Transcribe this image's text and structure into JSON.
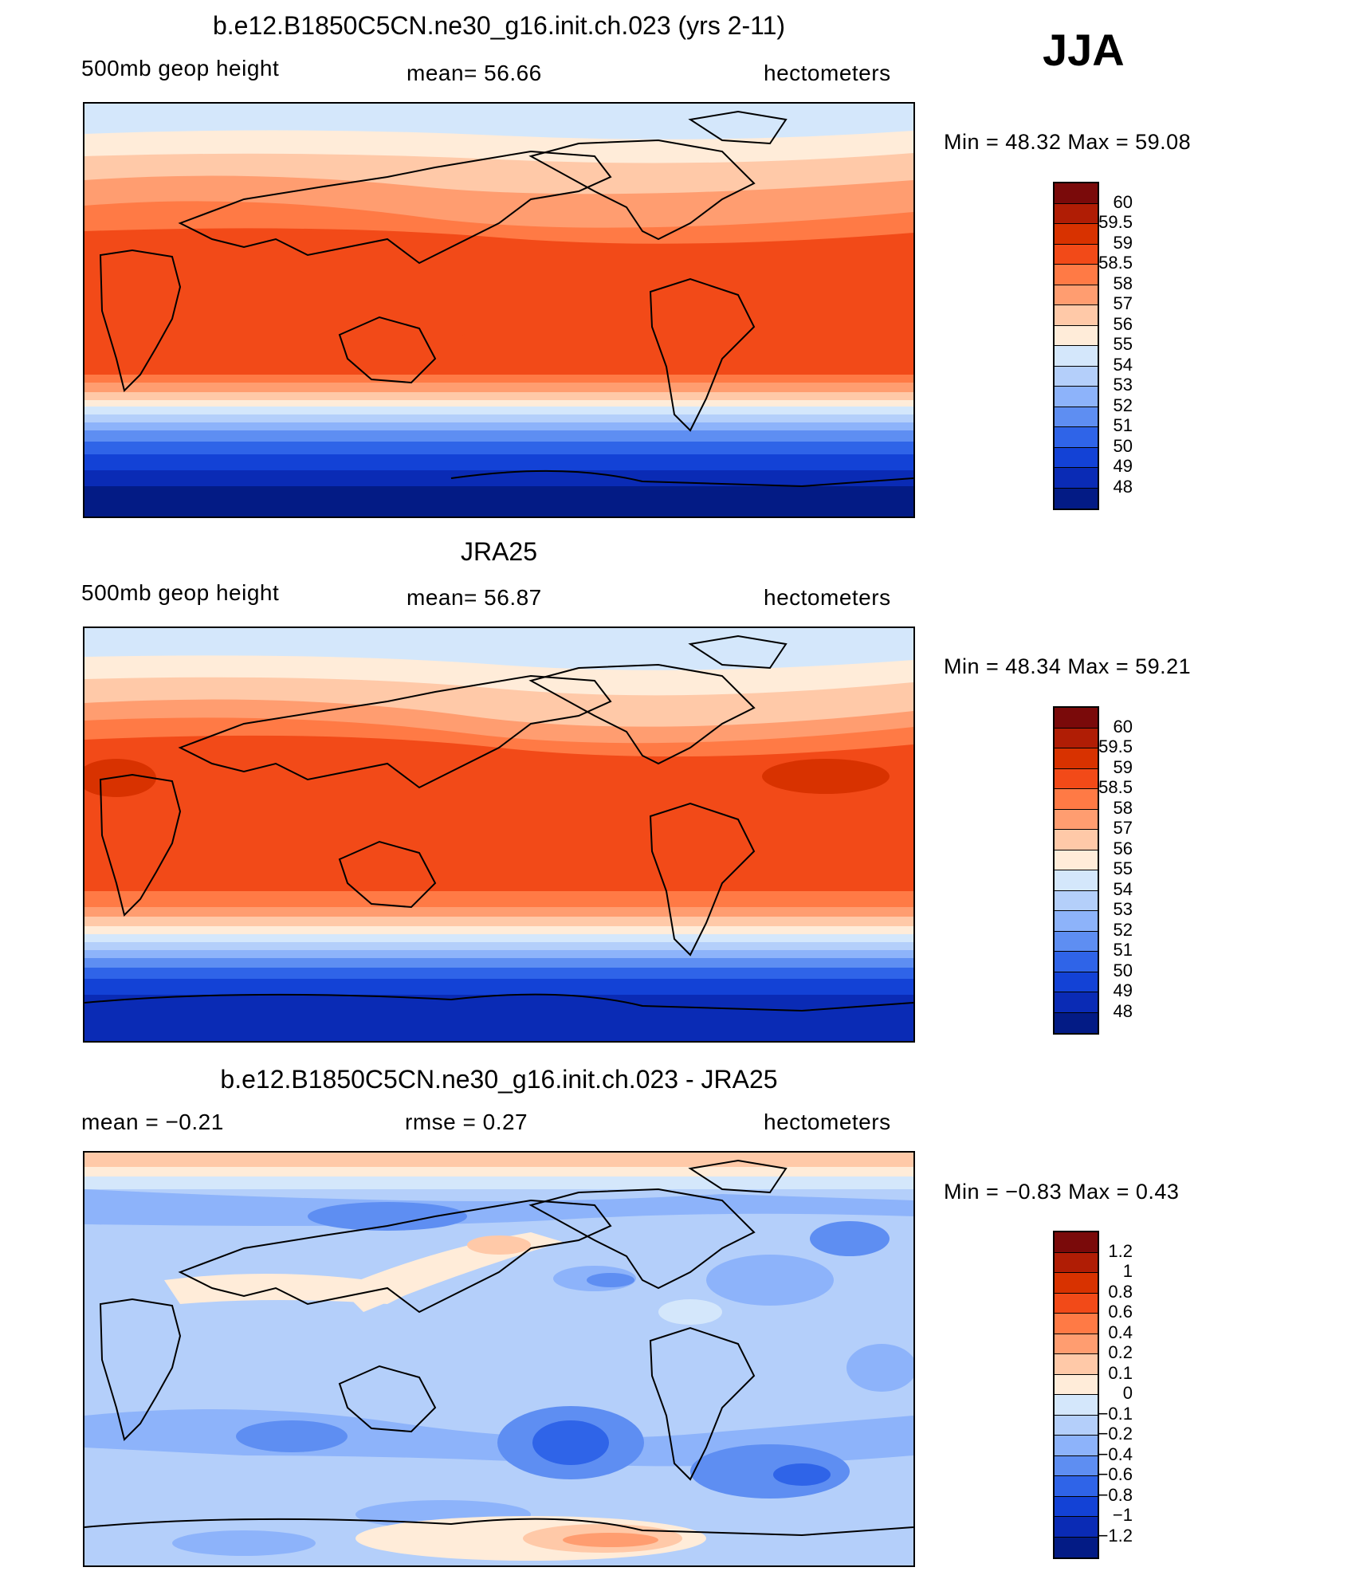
{
  "season": "JJA",
  "panels": [
    {
      "id": "model",
      "title": "b.e12.B1850C5CN.ne30_g16.init.ch.023 (yrs 2-11)",
      "left_label": "500mb  geop  height",
      "center_label": "mean=   56.66",
      "units": "hectometers",
      "minmax": "Min  =    48.32  Max  =    59.08",
      "colorbar": {
        "labels": [
          "60",
          "59.5",
          "59",
          "58.5",
          "58",
          "57",
          "56",
          "55",
          "54",
          "53",
          "52",
          "51",
          "50",
          "49",
          "48"
        ],
        "colors": [
          "#7a0a0a",
          "#b01d05",
          "#d83200",
          "#f24a18",
          "#ff7a45",
          "#ff9d70",
          "#ffc9a8",
          "#ffecd9",
          "#d4e7fb",
          "#b4cffa",
          "#8db3fa",
          "#5e8ef2",
          "#2f64e8",
          "#1342d6",
          "#0a2bb5",
          "#031b85"
        ]
      }
    },
    {
      "id": "obs",
      "title": "JRA25",
      "left_label": "500mb  geop  height",
      "center_label": "mean=   56.87",
      "units": "hectometers",
      "minmax": "Min  =    48.34  Max  =    59.21",
      "colorbar": {
        "labels": [
          "60",
          "59.5",
          "59",
          "58.5",
          "58",
          "57",
          "56",
          "55",
          "54",
          "53",
          "52",
          "51",
          "50",
          "49",
          "48"
        ],
        "colors": [
          "#7a0a0a",
          "#b01d05",
          "#d83200",
          "#f24a18",
          "#ff7a45",
          "#ff9d70",
          "#ffc9a8",
          "#ffecd9",
          "#d4e7fb",
          "#b4cffa",
          "#8db3fa",
          "#5e8ef2",
          "#2f64e8",
          "#1342d6",
          "#0a2bb5",
          "#031b85"
        ]
      }
    },
    {
      "id": "diff",
      "title": "b.e12.B1850C5CN.ne30_g16.init.ch.023 - JRA25",
      "left_label": "mean  =    −0.21",
      "center_label": "rmse  =     0.27",
      "units": "hectometers",
      "minmax": "Min  =    −0.83  Max  =      0.43",
      "colorbar": {
        "labels": [
          "1.2",
          "1",
          "0.8",
          "0.6",
          "0.4",
          "0.2",
          "0.1",
          "0",
          "−0.1",
          "−0.2",
          "−0.4",
          "−0.6",
          "−0.8",
          "−1",
          "−1.2"
        ],
        "colors": [
          "#7a0a0a",
          "#b01d05",
          "#d83200",
          "#f24a18",
          "#ff7a45",
          "#ff9d70",
          "#ffc9a8",
          "#ffecd9",
          "#d4e7fb",
          "#b4cffa",
          "#8db3fa",
          "#5e8ef2",
          "#2f64e8",
          "#1342d6",
          "#0a2bb5",
          "#031b85"
        ]
      }
    }
  ]
}
